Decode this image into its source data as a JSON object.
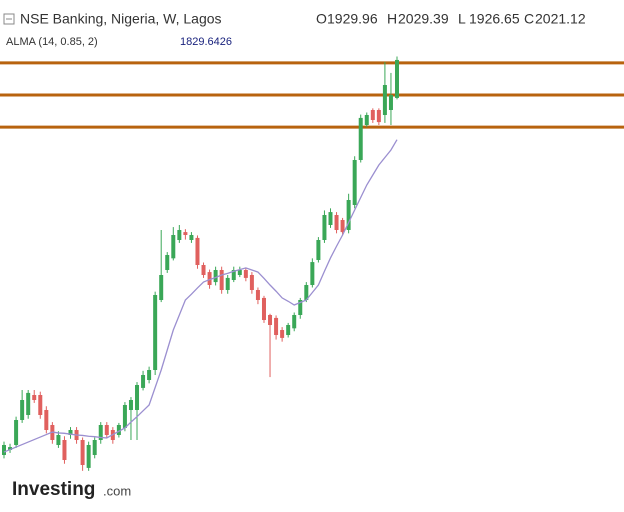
{
  "chart_data": {
    "type": "candlestick",
    "title": "NSE Banking, Nigeria, W, Lagos",
    "ohlc_letters": [
      "O",
      "H",
      "L",
      "C"
    ],
    "up_color": "#3aa757",
    "down_color": "#e0605e",
    "ylim": [
      941,
      2165
    ],
    "open": [
      1073,
      1085,
      1097,
      1157,
      1169,
      1217,
      1217,
      1181,
      1145,
      1097,
      1109,
      1121,
      1133,
      1109,
      1042,
      1073,
      1109,
      1145,
      1133,
      1121,
      1138,
      1181,
      1181,
      1234,
      1253,
      1277,
      1445,
      1517,
      1545,
      1589,
      1608,
      1589,
      1594,
      1529,
      1512,
      1488,
      1517,
      1469,
      1493,
      1505,
      1517,
      1505,
      1469,
      1450,
      1409,
      1402,
      1373,
      1361,
      1377,
      1409,
      1445,
      1481,
      1541,
      1589,
      1625,
      1649,
      1637,
      1613,
      1673,
      1781,
      1865,
      1901,
      1901,
      1889,
      1901,
      1929.96
    ],
    "high": [
      1105,
      1100,
      1165,
      1229,
      1229,
      1229,
      1225,
      1190,
      1152,
      1130,
      1118,
      1140,
      1140,
      1115,
      1105,
      1115,
      1152,
      1152,
      1140,
      1150,
      1200,
      1212,
      1248,
      1275,
      1285,
      1465,
      1613,
      1560,
      1620,
      1625,
      1615,
      1608,
      1600,
      1535,
      1518,
      1525,
      1525,
      1505,
      1525,
      1525,
      1522,
      1512,
      1475,
      1455,
      1412,
      1408,
      1380,
      1390,
      1415,
      1450,
      1488,
      1545,
      1596,
      1660,
      1665,
      1656,
      1642,
      1700,
      1790,
      1890,
      1895,
      1905,
      1905,
      2016,
      1990,
      2029.39
    ],
    "low": [
      1065,
      1078,
      1090,
      1150,
      1160,
      1198,
      1160,
      1125,
      1100,
      1090,
      1052,
      1112,
      1100,
      1035,
      1035,
      1065,
      1100,
      1115,
      1100,
      1115,
      1130,
      1109,
      1109,
      1228,
      1245,
      1265,
      1440,
      1510,
      1540,
      1582,
      1590,
      1582,
      1520,
      1498,
      1472,
      1480,
      1460,
      1460,
      1488,
      1500,
      1490,
      1460,
      1435,
      1390,
      1260,
      1350,
      1345,
      1355,
      1370,
      1400,
      1440,
      1475,
      1535,
      1582,
      1618,
      1605,
      1600,
      1605,
      1665,
      1775,
      1860,
      1870,
      1865,
      1870,
      1865,
      1926.65
    ],
    "close": [
      1097,
      1092,
      1157,
      1205,
      1222,
      1205,
      1169,
      1133,
      1109,
      1121,
      1061,
      1133,
      1109,
      1049,
      1097,
      1109,
      1145,
      1121,
      1109,
      1145,
      1193,
      1205,
      1241,
      1265,
      1277,
      1457,
      1505,
      1553,
      1601,
      1613,
      1601,
      1601,
      1529,
      1505,
      1481,
      1517,
      1469,
      1498,
      1517,
      1517,
      1498,
      1469,
      1445,
      1397,
      1385,
      1361,
      1354,
      1385,
      1409,
      1445,
      1481,
      1536,
      1589,
      1649,
      1656,
      1613,
      1608,
      1685,
      1781,
      1882,
      1889,
      1877,
      1872,
      1961,
      1937,
      2021.12
    ],
    "overlay": {
      "name": "ALMA (14, 0.85, 2)",
      "color": "#9b8fd0",
      "values": [
        1080,
        1086,
        1092,
        1098,
        1104,
        1110,
        1116,
        1122,
        1128,
        1126,
        1125,
        1123,
        1121,
        1120,
        1118,
        1117,
        1115,
        1114,
        1122,
        1130,
        1138,
        1152,
        1165,
        1179,
        1193,
        1235,
        1277,
        1325,
        1373,
        1409,
        1445,
        1459,
        1474,
        1488,
        1494,
        1499,
        1505,
        1509,
        1514,
        1518,
        1522,
        1517,
        1512,
        1497,
        1481,
        1466,
        1450,
        1442,
        1433,
        1439,
        1445,
        1463,
        1481,
        1514,
        1546,
        1574,
        1601,
        1631,
        1661,
        1691,
        1721,
        1745,
        1769,
        1787,
        1805,
        1829.6426
      ]
    },
    "hlines": {
      "color": "#b8630f",
      "values": [
        2014,
        1937,
        1860
      ]
    }
  },
  "logo": {
    "text": "Investing",
    "suffix": ".com"
  }
}
